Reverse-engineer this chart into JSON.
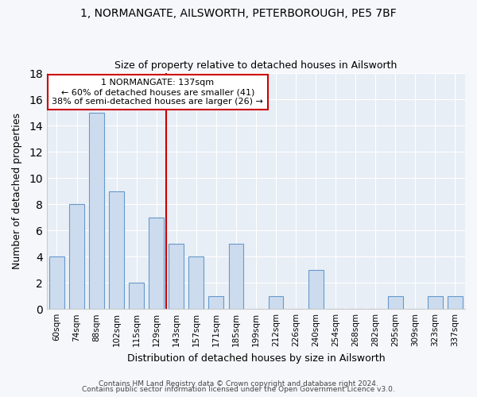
{
  "title1": "1, NORMANGATE, AILSWORTH, PETERBOROUGH, PE5 7BF",
  "title2": "Size of property relative to detached houses in Ailsworth",
  "xlabel": "Distribution of detached houses by size in Ailsworth",
  "ylabel": "Number of detached properties",
  "categories": [
    "60sqm",
    "74sqm",
    "88sqm",
    "102sqm",
    "115sqm",
    "129sqm",
    "143sqm",
    "157sqm",
    "171sqm",
    "185sqm",
    "199sqm",
    "212sqm",
    "226sqm",
    "240sqm",
    "254sqm",
    "268sqm",
    "282sqm",
    "295sqm",
    "309sqm",
    "323sqm",
    "337sqm"
  ],
  "values": [
    4,
    8,
    15,
    9,
    2,
    7,
    5,
    4,
    1,
    5,
    0,
    1,
    0,
    3,
    0,
    0,
    0,
    1,
    0,
    1,
    1
  ],
  "bar_color": "#ccdcee",
  "bar_edgecolor": "#6699cc",
  "highlight_index": 6,
  "annotation_text": "1 NORMANGATE: 137sqm\n← 60% of detached houses are smaller (41)\n38% of semi-detached houses are larger (26) →",
  "box_facecolor": "white",
  "box_edgecolor": "#cc0000",
  "redline_color": "#cc0000",
  "ylim": [
    0,
    18
  ],
  "yticks": [
    0,
    2,
    4,
    6,
    8,
    10,
    12,
    14,
    16,
    18
  ],
  "footer1": "Contains HM Land Registry data © Crown copyright and database right 2024.",
  "footer2": "Contains public sector information licensed under the Open Government Licence v3.0.",
  "fig_bg_color": "#f5f7fa",
  "plot_bg_color": "#e8eef5",
  "grid_color": "#ffffff",
  "spine_color": "#cccccc"
}
